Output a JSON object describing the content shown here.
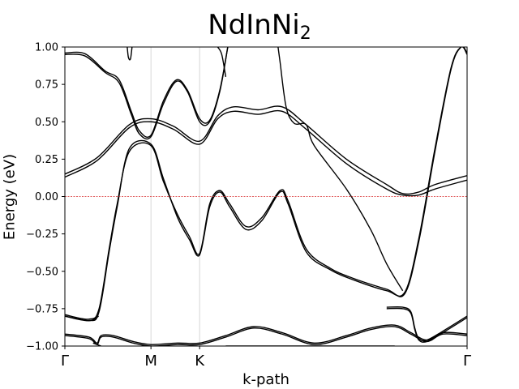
{
  "chart_data": {
    "type": "line",
    "title_main": "NdInNi",
    "title_sub": "2",
    "xlabel": "k-path",
    "ylabel": "Energy (eV)",
    "ylim": [
      -1.0,
      1.0
    ],
    "xlim": [
      0,
      1
    ],
    "yticks": [
      "−1.00",
      "−0.75",
      "−0.50",
      "−0.25",
      "0.00",
      "0.25",
      "0.50",
      "0.75",
      "1.00"
    ],
    "ytick_values": [
      -1.0,
      -0.75,
      -0.5,
      -0.25,
      0.0,
      0.25,
      0.5,
      0.75,
      1.0
    ],
    "kpoints": [
      {
        "label": "Γ",
        "x": 0.0
      },
      {
        "label": "M",
        "x": 0.214
      },
      {
        "label": "K",
        "x": 0.335
      },
      {
        "label": "Γ",
        "x": 1.0
      }
    ],
    "fermi_level": 0.0,
    "colors": {
      "bands": "#000000",
      "fermi": "#d62728",
      "kgrid": "#cccccc"
    },
    "series": [
      {
        "values": [
          [
            0.0,
            0.95
          ],
          [
            0.05,
            0.94
          ],
          [
            0.1,
            0.83
          ],
          [
            0.135,
            0.76
          ],
          [
            0.165,
            0.55
          ],
          [
            0.185,
            0.42
          ],
          [
            0.214,
            0.4
          ],
          [
            0.245,
            0.62
          ],
          [
            0.277,
            0.77
          ],
          [
            0.305,
            0.7
          ],
          [
            0.335,
            0.5
          ],
          [
            0.36,
            0.5
          ],
          [
            0.385,
            0.7
          ],
          [
            0.405,
            1.0
          ]
        ]
      },
      {
        "values": [
          [
            0.0,
            0.96
          ],
          [
            0.05,
            0.955
          ],
          [
            0.1,
            0.84
          ],
          [
            0.135,
            0.78
          ],
          [
            0.165,
            0.57
          ],
          [
            0.185,
            0.44
          ],
          [
            0.214,
            0.41
          ],
          [
            0.245,
            0.64
          ],
          [
            0.277,
            0.78
          ],
          [
            0.305,
            0.71
          ],
          [
            0.335,
            0.52
          ],
          [
            0.36,
            0.51
          ],
          [
            0.385,
            0.71
          ],
          [
            0.405,
            1.0
          ]
        ]
      },
      {
        "values": [
          [
            0.155,
            1.0
          ],
          [
            0.158,
            0.93
          ],
          [
            0.163,
            0.92
          ],
          [
            0.167,
            1.0
          ]
        ]
      },
      {
        "values": [
          [
            0.0,
            0.13
          ],
          [
            0.08,
            0.24
          ],
          [
            0.16,
            0.46
          ],
          [
            0.214,
            0.5
          ],
          [
            0.27,
            0.45
          ],
          [
            0.335,
            0.35
          ],
          [
            0.38,
            0.52
          ],
          [
            0.42,
            0.57
          ],
          [
            0.48,
            0.55
          ],
          [
            0.54,
            0.57
          ],
          [
            0.6,
            0.45
          ],
          [
            0.7,
            0.22
          ],
          [
            0.8,
            0.05
          ],
          [
            0.84,
            0.01
          ],
          [
            0.88,
            0.01
          ],
          [
            0.92,
            0.05
          ],
          [
            1.0,
            0.11
          ]
        ]
      },
      {
        "values": [
          [
            0.0,
            0.15
          ],
          [
            0.08,
            0.26
          ],
          [
            0.16,
            0.48
          ],
          [
            0.214,
            0.52
          ],
          [
            0.27,
            0.47
          ],
          [
            0.335,
            0.37
          ],
          [
            0.38,
            0.54
          ],
          [
            0.42,
            0.6
          ],
          [
            0.48,
            0.58
          ],
          [
            0.54,
            0.6
          ],
          [
            0.6,
            0.48
          ],
          [
            0.7,
            0.25
          ],
          [
            0.8,
            0.08
          ],
          [
            0.84,
            0.02
          ],
          [
            0.88,
            0.03
          ],
          [
            0.92,
            0.08
          ],
          [
            1.0,
            0.14
          ]
        ]
      },
      {
        "values": [
          [
            0.0,
            -0.79
          ],
          [
            0.06,
            -0.82
          ],
          [
            0.085,
            -0.75
          ],
          [
            0.11,
            -0.35
          ],
          [
            0.13,
            -0.05
          ],
          [
            0.16,
            0.3
          ],
          [
            0.214,
            0.34
          ],
          [
            0.245,
            0.1
          ],
          [
            0.28,
            -0.12
          ],
          [
            0.31,
            -0.27
          ],
          [
            0.335,
            -0.38
          ],
          [
            0.36,
            -0.05
          ],
          [
            0.385,
            0.04
          ],
          [
            0.41,
            -0.05
          ],
          [
            0.45,
            -0.2
          ],
          [
            0.49,
            -0.14
          ],
          [
            0.535,
            0.04
          ],
          [
            0.555,
            -0.03
          ],
          [
            0.6,
            -0.35
          ],
          [
            0.66,
            -0.48
          ],
          [
            0.72,
            -0.55
          ],
          [
            0.8,
            -0.62
          ],
          [
            0.845,
            -0.65
          ],
          [
            0.88,
            -0.3
          ],
          [
            0.92,
            0.3
          ],
          [
            0.96,
            0.85
          ],
          [
            0.985,
            1.0
          ],
          [
            1.0,
            0.96
          ]
        ]
      },
      {
        "values": [
          [
            0.0,
            -0.8
          ],
          [
            0.06,
            -0.83
          ],
          [
            0.085,
            -0.77
          ],
          [
            0.11,
            -0.37
          ],
          [
            0.13,
            -0.07
          ],
          [
            0.16,
            0.32
          ],
          [
            0.214,
            0.35
          ],
          [
            0.245,
            0.12
          ],
          [
            0.28,
            -0.14
          ],
          [
            0.31,
            -0.29
          ],
          [
            0.335,
            -0.39
          ],
          [
            0.36,
            -0.07
          ],
          [
            0.385,
            0.03
          ],
          [
            0.41,
            -0.07
          ],
          [
            0.45,
            -0.22
          ],
          [
            0.49,
            -0.16
          ],
          [
            0.535,
            0.03
          ],
          [
            0.555,
            -0.05
          ],
          [
            0.6,
            -0.37
          ],
          [
            0.66,
            -0.49
          ],
          [
            0.72,
            -0.56
          ],
          [
            0.8,
            -0.63
          ],
          [
            0.845,
            -0.64
          ],
          [
            0.88,
            -0.28
          ],
          [
            0.92,
            0.32
          ],
          [
            0.96,
            0.86
          ],
          [
            0.985,
            1.0
          ],
          [
            1.0,
            0.95
          ]
        ]
      },
      {
        "values": [
          [
            0.53,
            1.0
          ],
          [
            0.535,
            0.9
          ],
          [
            0.55,
            0.6
          ],
          [
            0.57,
            0.49
          ],
          [
            0.6,
            0.48
          ],
          [
            0.62,
            0.34
          ],
          [
            0.7,
            0.05
          ],
          [
            0.76,
            -0.22
          ],
          [
            0.8,
            -0.45
          ],
          [
            0.84,
            -0.63
          ]
        ]
      },
      {
        "values": [
          [
            0.38,
            1.0
          ],
          [
            0.39,
            0.95
          ],
          [
            0.4,
            0.8
          ]
        ]
      },
      {
        "values": [
          [
            0.0,
            -0.92
          ],
          [
            0.06,
            -0.94
          ],
          [
            0.08,
            -0.98
          ],
          [
            0.09,
            -0.93
          ],
          [
            0.12,
            -0.93
          ],
          [
            0.17,
            -0.97
          ],
          [
            0.214,
            -0.99
          ],
          [
            0.28,
            -0.98
          ],
          [
            0.335,
            -0.98
          ],
          [
            0.4,
            -0.93
          ],
          [
            0.47,
            -0.87
          ],
          [
            0.54,
            -0.91
          ],
          [
            0.62,
            -0.98
          ],
          [
            0.7,
            -0.93
          ],
          [
            0.76,
            -0.88
          ],
          [
            0.82,
            -0.86
          ],
          [
            0.86,
            -0.91
          ],
          [
            0.9,
            -0.96
          ],
          [
            0.94,
            -0.91
          ],
          [
            1.0,
            -0.92
          ]
        ]
      },
      {
        "values": [
          [
            0.0,
            -0.93
          ],
          [
            0.06,
            -0.95
          ],
          [
            0.08,
            -0.99
          ],
          [
            0.09,
            -0.94
          ],
          [
            0.12,
            -0.94
          ],
          [
            0.17,
            -0.98
          ],
          [
            0.214,
            -1.0
          ],
          [
            0.28,
            -0.99
          ],
          [
            0.335,
            -0.99
          ],
          [
            0.4,
            -0.94
          ],
          [
            0.47,
            -0.88
          ],
          [
            0.54,
            -0.92
          ],
          [
            0.62,
            -0.99
          ],
          [
            0.7,
            -0.94
          ],
          [
            0.76,
            -0.89
          ],
          [
            0.82,
            -0.87
          ],
          [
            0.86,
            -0.92
          ],
          [
            0.9,
            -0.97
          ],
          [
            0.94,
            -0.92
          ],
          [
            1.0,
            -0.93
          ]
        ]
      },
      {
        "values": [
          [
            0.0,
            -0.8
          ],
          [
            0.06,
            -0.83
          ],
          [
            0.084,
            -0.8
          ]
        ]
      },
      {
        "values": [
          [
            0.8,
            -0.74
          ],
          [
            0.84,
            -0.74
          ],
          [
            0.86,
            -0.77
          ],
          [
            0.87,
            -0.88
          ],
          [
            0.88,
            -0.95
          ],
          [
            0.9,
            -0.96
          ],
          [
            0.94,
            -0.9
          ],
          [
            1.0,
            -0.8
          ]
        ]
      },
      {
        "values": [
          [
            0.8,
            -0.75
          ],
          [
            0.84,
            -0.75
          ],
          [
            0.86,
            -0.78
          ],
          [
            0.87,
            -0.89
          ],
          [
            0.88,
            -0.96
          ],
          [
            0.9,
            -0.97
          ],
          [
            0.94,
            -0.91
          ],
          [
            1.0,
            -0.81
          ]
        ]
      },
      {
        "values": [
          [
            0.07,
            -0.98
          ],
          [
            0.09,
            -1.0
          ]
        ]
      },
      {
        "values": [
          [
            0.4,
            -1.0
          ],
          [
            0.6,
            -1.0
          ],
          [
            0.75,
            -1.0
          ],
          [
            0.82,
            -1.0
          ]
        ]
      }
    ]
  }
}
